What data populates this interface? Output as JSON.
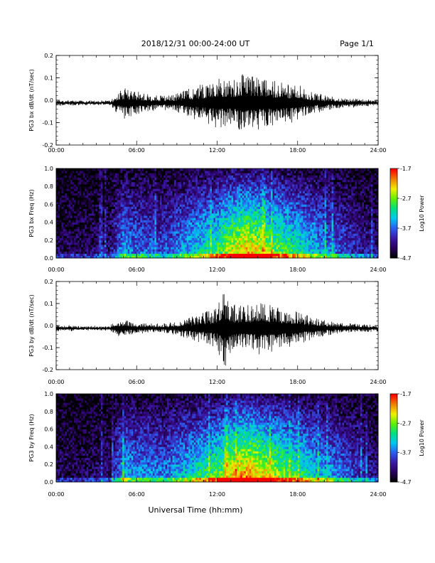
{
  "header": {
    "date_range": "2018/12/31  00:00-24:00 UT",
    "page": "Page 1/1"
  },
  "footer": {
    "xlabel": "Universal Time (hh:mm)"
  },
  "time_ticks": [
    "00:00",
    "06:00",
    "12:00",
    "18:00",
    "24:00"
  ],
  "colorbar": {
    "label": "Log10 Power",
    "ticks": [
      "-1.7",
      "-2.7",
      "-3.7",
      "-4.7"
    ],
    "colors": [
      "#000000",
      "#2a0060",
      "#3a1aa8",
      "#2a5ef0",
      "#00c8f0",
      "#00e080",
      "#60f000",
      "#f0f000",
      "#f08000",
      "#ff0000"
    ]
  },
  "chart_data": [
    {
      "type": "line",
      "name": "panel-bx-dbdt",
      "ylabel": "PG3 bx dB/dt (nT/sec)",
      "ylim": [
        -0.2,
        0.2
      ],
      "yticks": [
        -0.2,
        -0.1,
        0.0,
        0.1,
        0.2
      ],
      "ytick_labels": [
        "-0.2",
        "-0.1",
        "0.0",
        "0.1",
        "0.2"
      ],
      "x_hours": [
        0,
        1,
        2,
        3,
        4,
        4.5,
        5,
        5.5,
        6,
        7,
        8,
        9,
        10,
        11,
        12,
        13,
        14,
        15,
        16,
        17,
        18,
        19,
        20,
        21,
        22,
        23,
        24
      ],
      "envelope": [
        0.012,
        0.012,
        0.01,
        0.009,
        0.01,
        0.04,
        0.07,
        0.06,
        0.055,
        0.035,
        0.03,
        0.04,
        0.065,
        0.085,
        0.11,
        0.1,
        0.13,
        0.12,
        0.1,
        0.09,
        0.085,
        0.05,
        0.035,
        0.025,
        0.02,
        0.015,
        0.012
      ],
      "color": "#000000"
    },
    {
      "type": "heatmap",
      "name": "panel-bx-freq",
      "ylabel": "PG3 bx Freq (Hz)",
      "ylim": [
        0.0,
        1.0
      ],
      "yticks": [
        0.0,
        0.2,
        0.4,
        0.6,
        0.8,
        1.0
      ],
      "ytick_labels": [
        "0.0",
        "0.2",
        "0.4",
        "0.6",
        "0.8",
        "1.0"
      ],
      "zlim": [
        -4.7,
        -1.7
      ],
      "x_hours": [
        0,
        2,
        4,
        5,
        6,
        8,
        10,
        12,
        13,
        14,
        15,
        16,
        18,
        20,
        22,
        24
      ],
      "activity": [
        0.1,
        0.1,
        0.15,
        0.4,
        0.35,
        0.3,
        0.45,
        0.6,
        0.75,
        0.85,
        0.8,
        0.7,
        0.55,
        0.4,
        0.25,
        0.15
      ]
    },
    {
      "type": "line",
      "name": "panel-by-dbdt",
      "ylabel": "PG3 by dB/dt (nT/sec)",
      "ylim": [
        -0.2,
        0.2
      ],
      "yticks": [
        -0.2,
        -0.1,
        0.0,
        0.1,
        0.2
      ],
      "ytick_labels": [
        "-0.2",
        "-0.1",
        "0.0",
        "0.1",
        "0.2"
      ],
      "x_hours": [
        0,
        1,
        2,
        3,
        4,
        4.5,
        5,
        5.5,
        6,
        7,
        8,
        9,
        10,
        11,
        12,
        12.5,
        13,
        14,
        15,
        16,
        17,
        18,
        19,
        20,
        21,
        22,
        23,
        24
      ],
      "envelope": [
        0.015,
        0.012,
        0.01,
        0.009,
        0.01,
        0.035,
        0.04,
        0.03,
        0.025,
        0.02,
        0.02,
        0.03,
        0.05,
        0.07,
        0.09,
        0.19,
        0.11,
        0.1,
        0.12,
        0.11,
        0.09,
        0.08,
        0.05,
        0.035,
        0.025,
        0.02,
        0.018,
        0.015
      ],
      "color": "#000000"
    },
    {
      "type": "heatmap",
      "name": "panel-by-freq",
      "ylabel": "PG3 by Freq (Hz)",
      "ylim": [
        0.0,
        1.0
      ],
      "yticks": [
        0.0,
        0.2,
        0.4,
        0.6,
        0.8,
        1.0
      ],
      "ytick_labels": [
        "0.0",
        "0.2",
        "0.4",
        "0.6",
        "0.8",
        "1.0"
      ],
      "zlim": [
        -4.7,
        -1.7
      ],
      "x_hours": [
        0,
        2,
        4,
        5,
        6,
        8,
        10,
        12,
        13,
        14,
        15,
        16,
        18,
        20,
        22,
        24
      ],
      "activity": [
        0.1,
        0.1,
        0.15,
        0.45,
        0.4,
        0.35,
        0.5,
        0.65,
        0.8,
        0.9,
        0.85,
        0.75,
        0.6,
        0.45,
        0.3,
        0.15
      ]
    }
  ]
}
